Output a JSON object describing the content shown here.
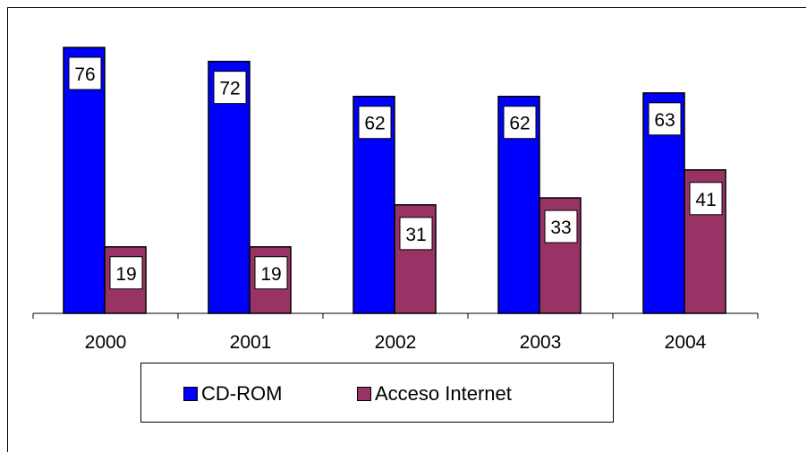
{
  "colors": {
    "cd_rom": "#0000FF",
    "acceso_internet": "#993366"
  },
  "legend": {
    "cd_rom": "CD-ROM",
    "acceso_internet": "Acceso Internet"
  },
  "chart_data": {
    "type": "bar",
    "categories": [
      "2000",
      "2001",
      "2002",
      "2003",
      "2004"
    ],
    "series": [
      {
        "name": "CD-ROM",
        "values": [
          76,
          72,
          62,
          62,
          63
        ]
      },
      {
        "name": "Acceso Internet",
        "values": [
          19,
          19,
          31,
          33,
          41
        ]
      }
    ],
    "ylim": [
      0,
      80
    ],
    "grid": false,
    "legend_position": "bottom",
    "data_labels": true
  }
}
